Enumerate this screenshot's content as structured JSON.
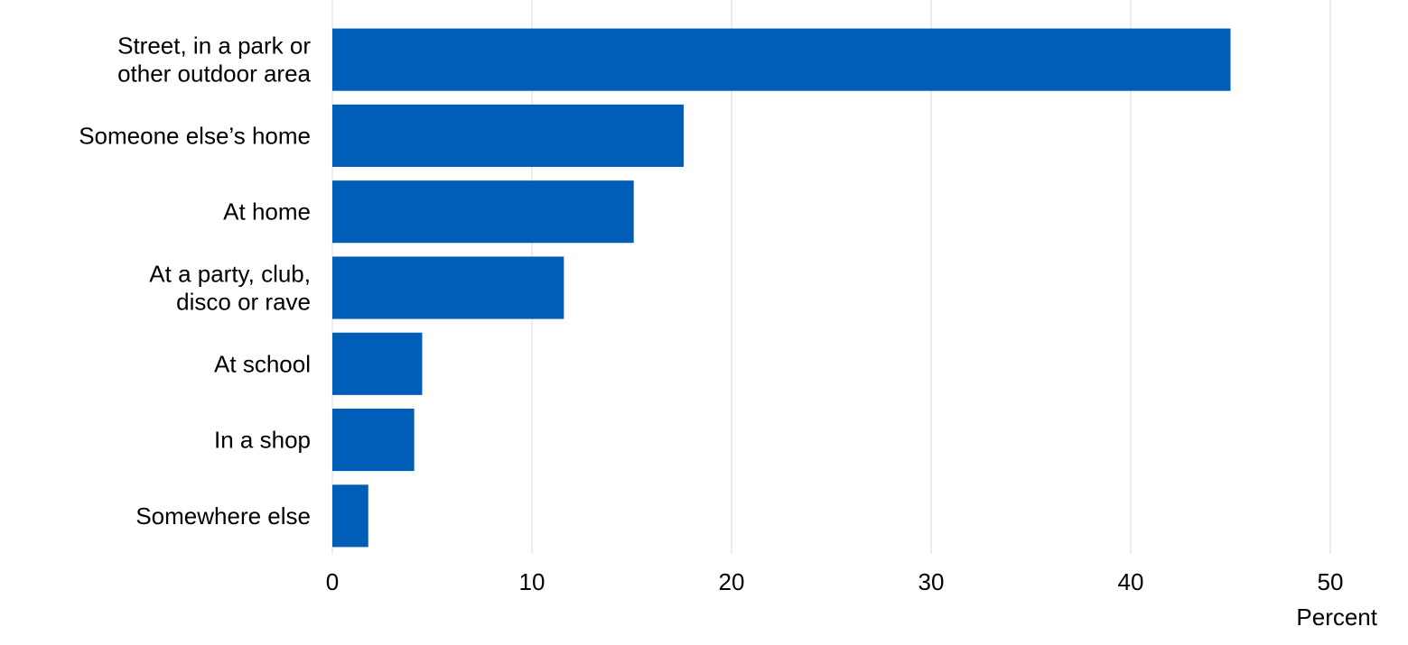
{
  "chart_data": {
    "type": "bar",
    "orientation": "horizontal",
    "categories": [
      [
        "Street, in a park or",
        "other outdoor area"
      ],
      [
        "Someone else’s home"
      ],
      [
        "At home"
      ],
      [
        "At a party, club,",
        "disco or rave"
      ],
      [
        "At school"
      ],
      [
        "In a shop"
      ],
      [
        "Somewhere else"
      ]
    ],
    "values": [
      45,
      17.6,
      15.1,
      11.6,
      4.5,
      4.1,
      1.8
    ],
    "xlabel": "Percent",
    "ylabel": "",
    "xlim": [
      0,
      50
    ],
    "xticks": [
      "0",
      "10",
      "20",
      "30",
      "40",
      "50"
    ],
    "grid": "vertical",
    "colors": {
      "bar": "#005EB8",
      "grid": "#D9D9D9",
      "text": "#000000"
    }
  }
}
